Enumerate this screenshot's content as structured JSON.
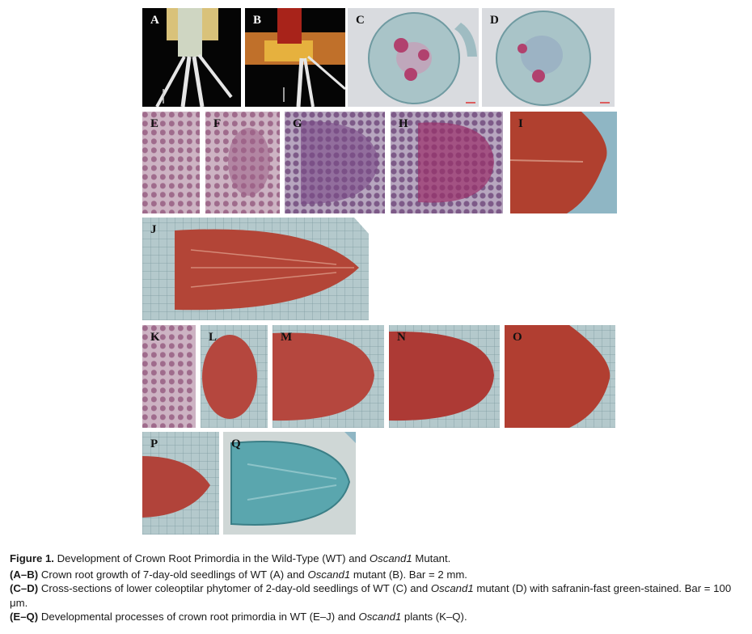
{
  "panels": {
    "A": "A",
    "B": "B",
    "C": "C",
    "D": "D",
    "E": "E",
    "F": "F",
    "G": "G",
    "H": "H",
    "I": "I",
    "J": "J",
    "K": "K",
    "L": "L",
    "M": "M",
    "N": "N",
    "O": "O",
    "P": "P",
    "Q": "Q"
  },
  "caption": {
    "figure_label": "Figure 1.",
    "title_part1": " Development of Crown Root Primordia in the Wild-Type (WT) and ",
    "title_mutant": "Oscand1",
    "title_part2": " Mutant.",
    "ab_label": "(A–B)",
    "ab_part1": " Crown root growth of 7-day-old seedlings of WT (A) and ",
    "ab_mutant": "Oscand1",
    "ab_part2": " mutant (B). Bar = 2 mm.",
    "cd_label": "(C–D)",
    "cd_part1": " Cross-sections of lower coleoptilar phytomer of 2-day-old seedlings of WT (C) and ",
    "cd_mutant": "Oscand1",
    "cd_part2": " mutant (D) with safranin-fast green-stained. Bar = 100 μm.",
    "eq_label": "(E–Q)",
    "eq_part1": " Developmental processes of crown root primordia in WT (E–J) and ",
    "eq_mutant": "Oscand1",
    "eq_part2": " plants (K–Q)."
  }
}
